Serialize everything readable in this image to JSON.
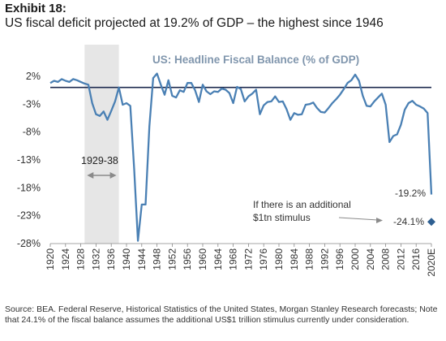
{
  "header": {
    "exhibit": "Exhibit 18:",
    "subtitle": "US fiscal deficit projected at 19.2% of GDP – the highest since 1946"
  },
  "colors": {
    "line": "#4a80b4",
    "title": "#8096ad",
    "shade": "#e6e6e6",
    "zero_line": "#1e2b4f",
    "arrow": "#8a8a8a"
  },
  "annotations": {
    "shade_label": "1929-38",
    "stimulus_note_1": "If there is an additional",
    "stimulus_note_2": "$1tn stimulus",
    "value_2020": "-19.2%",
    "value_stimulus": "-24.1%"
  },
  "source": "Source: BEA. Federal Reserve, Historical Statistics of the United States, Morgan Stanley Research forecasts; Note that 24.1% of the fiscal balance assumes the additional US$1 trillion stimulus currently under consideration.",
  "chart_data": {
    "type": "line",
    "title": "US: Headline Fiscal Balance (% of GDP)",
    "xlabel": "",
    "ylabel": "",
    "ylim": [
      -28,
      2
    ],
    "yticks": [
      2,
      -3,
      -8,
      -13,
      -18,
      -23,
      -28
    ],
    "ytick_labels": [
      "2%",
      "-3%",
      "-8%",
      "-13%",
      "-18%",
      "-23%",
      "-28%"
    ],
    "xlim": [
      1920,
      2020
    ],
    "xtick_labels": [
      "1920",
      "1924",
      "1928",
      "1932",
      "1936",
      "1940",
      "1944",
      "1948",
      "1952",
      "1956",
      "1960",
      "1964",
      "1968",
      "1972",
      "1976",
      "1980",
      "1984",
      "1988",
      "1992",
      "1996",
      "2000",
      "2004",
      "2008",
      "2012",
      "2016",
      "2020E"
    ],
    "shaded_range": [
      1929,
      1938
    ],
    "series": [
      {
        "x": [
          1920,
          1921,
          1922,
          1923,
          1924,
          1925,
          1926,
          1927,
          1928,
          1929,
          1930,
          1931,
          1932,
          1933,
          1934,
          1935,
          1936,
          1937,
          1938,
          1939,
          1940,
          1941,
          1942,
          1943,
          1944,
          1945,
          1946,
          1947,
          1948,
          1949,
          1950,
          1951,
          1952,
          1953,
          1954,
          1955,
          1956,
          1957,
          1958,
          1959,
          1960,
          1961,
          1962,
          1963,
          1964,
          1965,
          1966,
          1967,
          1968,
          1969,
          1970,
          1971,
          1972,
          1973,
          1974,
          1975,
          1976,
          1977,
          1978,
          1979,
          1980,
          1981,
          1982,
          1983,
          1984,
          1985,
          1986,
          1987,
          1988,
          1989,
          1990,
          1991,
          1992,
          1993,
          1994,
          1995,
          1996,
          1997,
          1998,
          1999,
          2000,
          2001,
          2002,
          2003,
          2004,
          2005,
          2006,
          2007,
          2008,
          2009,
          2010,
          2011,
          2012,
          2013,
          2014,
          2015,
          2016,
          2017,
          2018,
          2019,
          2020
        ],
        "values": [
          0.8,
          1.2,
          1.0,
          1.5,
          1.2,
          1.0,
          1.5,
          1.3,
          1.0,
          0.7,
          0.5,
          -2.8,
          -4.8,
          -5.1,
          -4.3,
          -5.8,
          -4.2,
          -2.5,
          0.0,
          -3.1,
          -2.8,
          -3.3,
          -14.5,
          -27.5,
          -21.0,
          -21.0,
          -7.0,
          1.7,
          2.5,
          0.5,
          -1.3,
          1.3,
          -1.5,
          -1.8,
          -0.5,
          -0.8,
          0.8,
          0.8,
          -0.5,
          -2.6,
          0.5,
          -0.7,
          -1.2,
          -0.7,
          -0.8,
          -0.2,
          -0.4,
          -1.0,
          -2.8,
          0.1,
          -0.3,
          -2.5,
          -1.6,
          -1.1,
          -0.4,
          -4.8,
          -3.2,
          -2.6,
          -2.5,
          -1.6,
          -2.6,
          -2.5,
          -3.9,
          -5.8,
          -4.6,
          -4.9,
          -4.8,
          -3.1,
          -3.0,
          -2.7,
          -3.7,
          -4.4,
          -4.5,
          -3.7,
          -2.8,
          -2.1,
          -1.3,
          -0.3,
          0.8,
          1.3,
          2.3,
          1.2,
          -1.5,
          -3.3,
          -3.4,
          -2.5,
          -1.8,
          -1.1,
          -3.1,
          -9.8,
          -8.7,
          -8.4,
          -6.7,
          -4.0,
          -2.8,
          -2.4,
          -3.1,
          -3.4,
          -3.8,
          -4.6,
          -19.2
        ]
      }
    ],
    "extra_points": [
      {
        "x": 2020,
        "value": -24.1,
        "label": "-24.1%"
      }
    ]
  }
}
